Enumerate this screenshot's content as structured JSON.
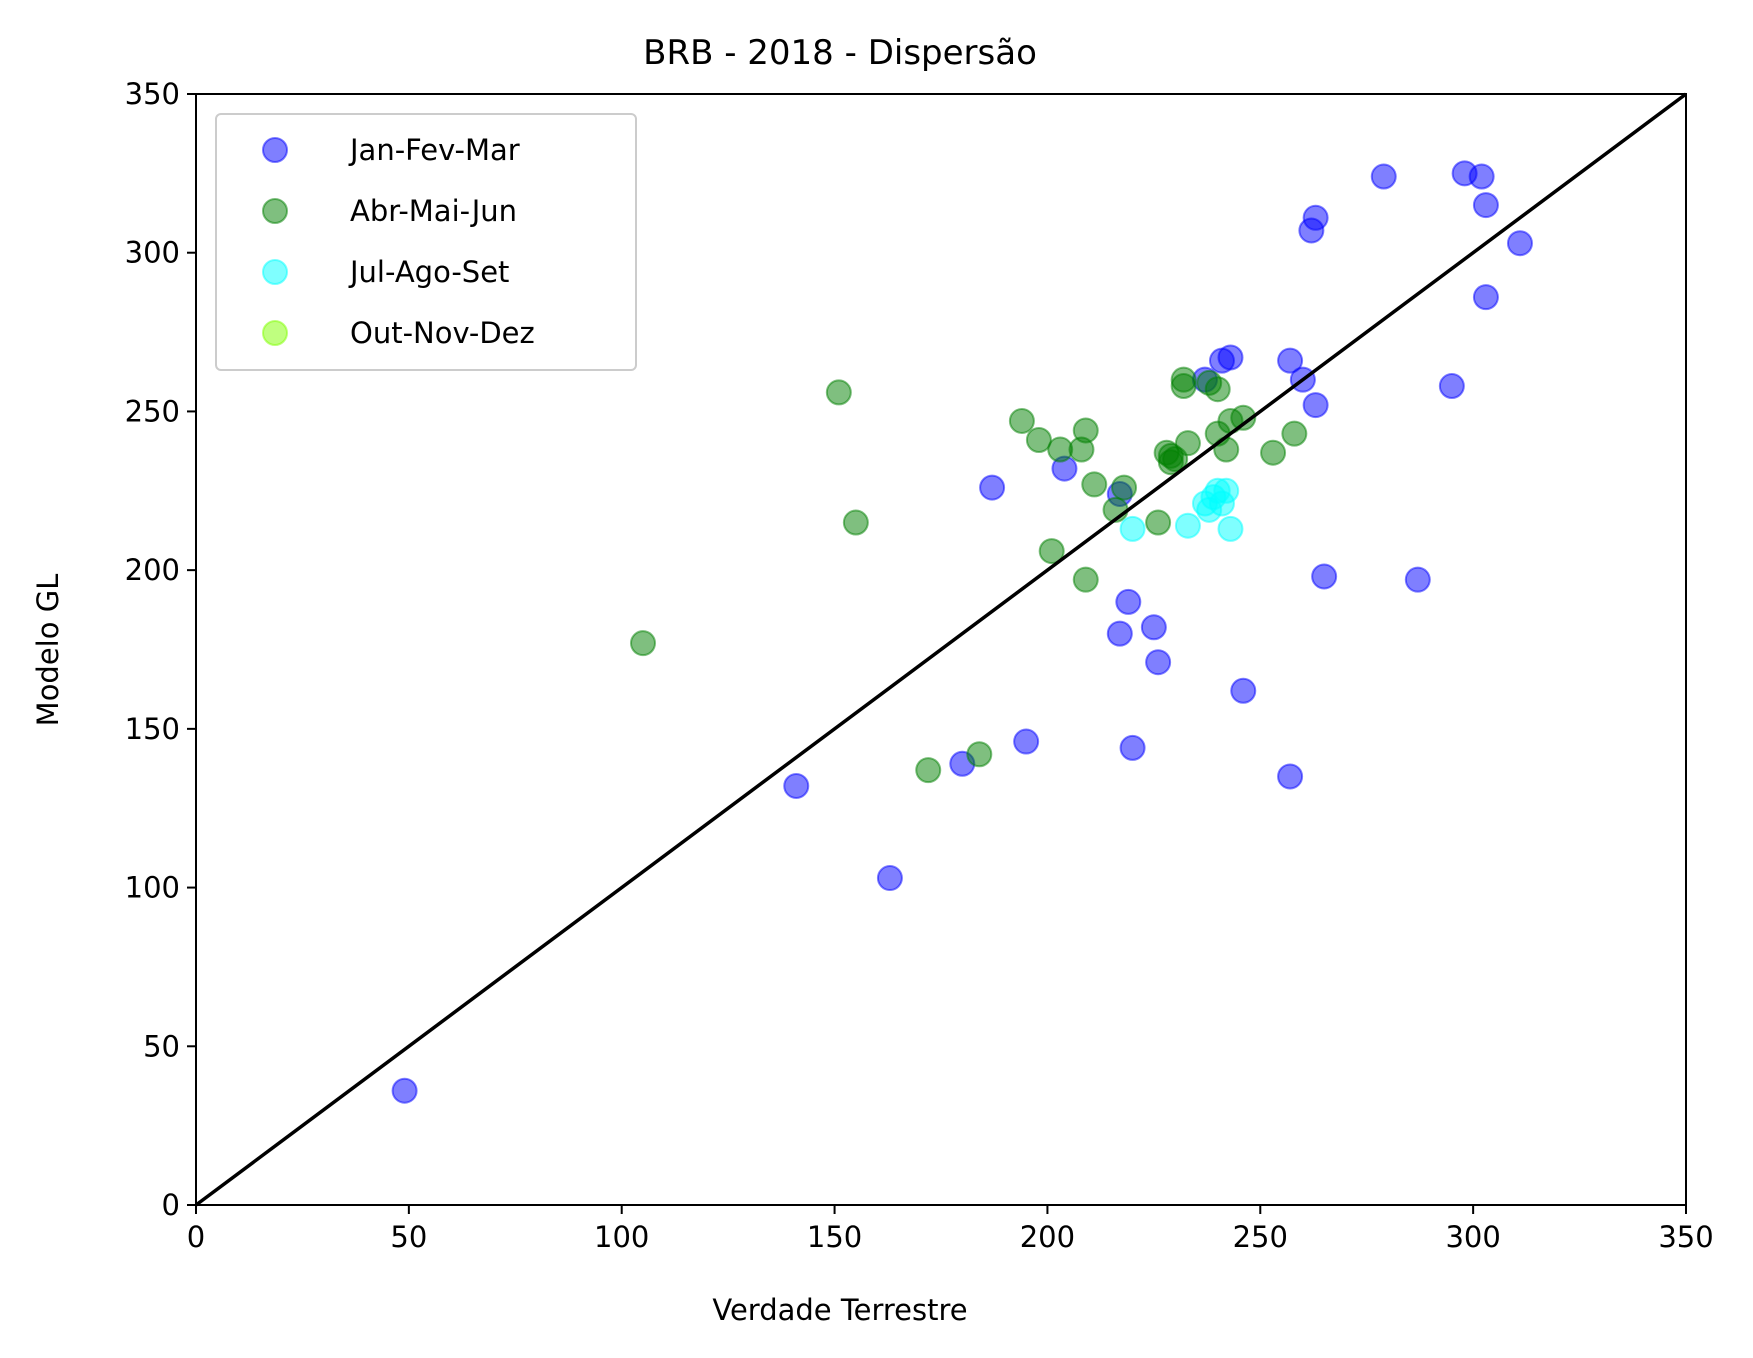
{
  "chart_data": {
    "type": "scatter",
    "title": "BRB - 2018 - Dispersão",
    "xlabel": "Verdade Terrestre",
    "ylabel": "Modelo GL",
    "xlim": [
      0,
      350
    ],
    "ylim": [
      0,
      350
    ],
    "xticks": [
      0,
      50,
      100,
      150,
      200,
      250,
      300,
      350
    ],
    "yticks": [
      0,
      50,
      100,
      150,
      200,
      250,
      300,
      350
    ],
    "grid": false,
    "legend_position": "top-left",
    "reference_line": {
      "x": [
        0,
        350
      ],
      "y": [
        0,
        350
      ],
      "color": "#000000"
    },
    "series": [
      {
        "name": "Jan-Fev-Mar",
        "color": "#0000ff",
        "points": [
          [
            49,
            36
          ],
          [
            141,
            132
          ],
          [
            163,
            103
          ],
          [
            180,
            139
          ],
          [
            187,
            226
          ],
          [
            195,
            146
          ],
          [
            204,
            232
          ],
          [
            217,
            224
          ],
          [
            217,
            180
          ],
          [
            219,
            190
          ],
          [
            220,
            144
          ],
          [
            225,
            182
          ],
          [
            226,
            171
          ],
          [
            237,
            260
          ],
          [
            241,
            266
          ],
          [
            243,
            267
          ],
          [
            246,
            162
          ],
          [
            257,
            135
          ],
          [
            257,
            266
          ],
          [
            260,
            260
          ],
          [
            262,
            307
          ],
          [
            263,
            252
          ],
          [
            263,
            311
          ],
          [
            265,
            198
          ],
          [
            279,
            324
          ],
          [
            287,
            197
          ],
          [
            295,
            258
          ],
          [
            298,
            325
          ],
          [
            302,
            324
          ],
          [
            303,
            315
          ],
          [
            303,
            286
          ],
          [
            311,
            303
          ]
        ]
      },
      {
        "name": "Abr-Mai-Jun",
        "color": "#008000",
        "points": [
          [
            105,
            177
          ],
          [
            151,
            256
          ],
          [
            155,
            215
          ],
          [
            172,
            137
          ],
          [
            184,
            142
          ],
          [
            194,
            247
          ],
          [
            198,
            241
          ],
          [
            201,
            206
          ],
          [
            203,
            238
          ],
          [
            208,
            238
          ],
          [
            209,
            244
          ],
          [
            209,
            197
          ],
          [
            211,
            227
          ],
          [
            216,
            219
          ],
          [
            218,
            226
          ],
          [
            226,
            215
          ],
          [
            228,
            237
          ],
          [
            229,
            234
          ],
          [
            229,
            236
          ],
          [
            230,
            235
          ],
          [
            232,
            260
          ],
          [
            232,
            258
          ],
          [
            233,
            240
          ],
          [
            238,
            259
          ],
          [
            240,
            257
          ],
          [
            240,
            243
          ],
          [
            242,
            238
          ],
          [
            243,
            247
          ],
          [
            246,
            248
          ],
          [
            253,
            237
          ],
          [
            258,
            243
          ]
        ]
      },
      {
        "name": "Jul-Ago-Set",
        "color": "#00ffff",
        "points": [
          [
            220,
            213
          ],
          [
            233,
            214
          ],
          [
            237,
            221
          ],
          [
            238,
            219
          ],
          [
            239,
            223
          ],
          [
            240,
            225
          ],
          [
            241,
            221
          ],
          [
            242,
            225
          ],
          [
            243,
            213
          ]
        ]
      },
      {
        "name": "Out-Nov-Dez",
        "color": "#7fff00",
        "points": []
      }
    ]
  }
}
